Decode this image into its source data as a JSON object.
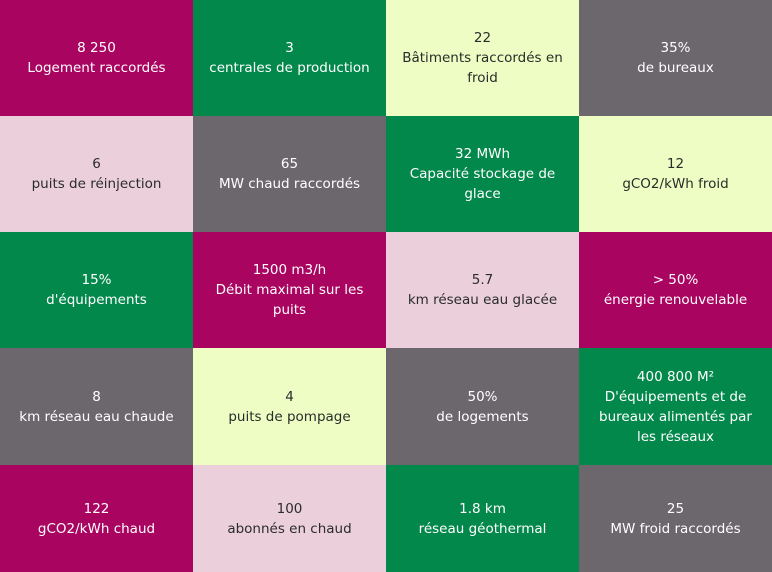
{
  "colors": {
    "magenta": "#aa0461",
    "green": "#03884b",
    "lime": "#eefdc4",
    "grey": "#6c666d",
    "pink": "#ebd0dc"
  },
  "tiles": [
    {
      "value": "8 250",
      "label": "Logement raccordés",
      "color": "magenta"
    },
    {
      "value": "3",
      "label": "centrales de production",
      "color": "green"
    },
    {
      "value": "22",
      "label": "Bâtiments raccordés en froid",
      "color": "lime"
    },
    {
      "value": "35%",
      "label": "de bureaux",
      "color": "grey"
    },
    {
      "value": "6",
      "label": "puits de réinjection",
      "color": "pink"
    },
    {
      "value": "65",
      "label": "MW chaud raccordés",
      "color": "grey"
    },
    {
      "value": "32 MWh",
      "label": "Capacité stockage de glace",
      "color": "green"
    },
    {
      "value": "12",
      "label": "gCO2/kWh froid",
      "color": "lime"
    },
    {
      "value": "15%",
      "label": "d'équipements",
      "color": "green"
    },
    {
      "value": "1500 m3/h",
      "label": "Débit maximal sur les puits",
      "color": "magenta"
    },
    {
      "value": "5.7",
      "label": "km réseau eau glacée",
      "color": "pink"
    },
    {
      "value": "> 50%",
      "label": "énergie renouvelable",
      "color": "magenta"
    },
    {
      "value": "8",
      "label": "km réseau eau chaude",
      "color": "grey"
    },
    {
      "value": "4",
      "label": "puits de pompage",
      "color": "lime"
    },
    {
      "value": "50%",
      "label": "de logements",
      "color": "grey"
    },
    {
      "value": "400 800 M²",
      "label": "D'équipements et de bureaux alimentés par les réseaux",
      "color": "green"
    },
    {
      "value": "122",
      "label": "gCO2/kWh chaud",
      "color": "magenta"
    },
    {
      "value": "100",
      "label": "abonnés en chaud",
      "color": "pink"
    },
    {
      "value": "1.8 km",
      "label": "réseau géothermal",
      "color": "green"
    },
    {
      "value": "25",
      "label": "MW froid raccordés",
      "color": "grey"
    }
  ]
}
